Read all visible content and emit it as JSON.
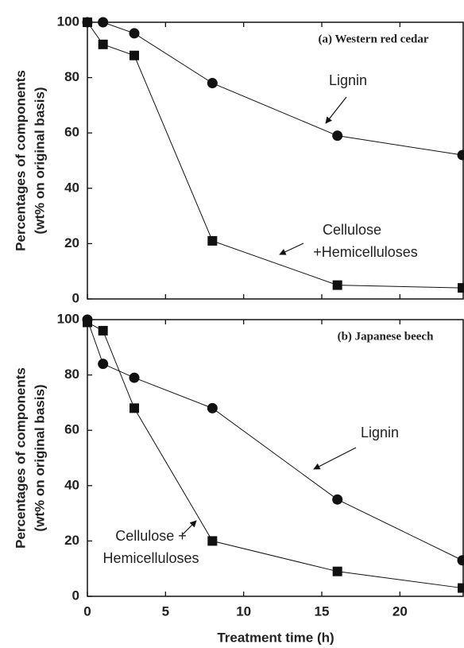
{
  "chart_data": [
    {
      "type": "line",
      "ylabel": [
        "Percentages of components",
        "(wt% on original basis)"
      ],
      "x": [
        0,
        1,
        3,
        8,
        16,
        24
      ],
      "xlim": [
        0,
        24
      ],
      "xticks": [
        0,
        5,
        10,
        15,
        20
      ],
      "ylim": [
        0,
        100
      ],
      "yticks": [
        0,
        20,
        40,
        60,
        80,
        100
      ],
      "title": "(a) Western red cedar",
      "series": [
        {
          "label_lines": [
            "Lignin"
          ],
          "marker": "circle",
          "color": "#111",
          "values": [
            100,
            100,
            96,
            78,
            59,
            52
          ]
        },
        {
          "label_lines": [
            "Cellulose",
            "+Hemicelluloses"
          ],
          "marker": "square",
          "color": "#111",
          "values": [
            100,
            92,
            88,
            21,
            5,
            4
          ]
        }
      ]
    },
    {
      "type": "line",
      "ylabel": [
        "Percentages of components",
        "(wt% on original basis)"
      ],
      "xlabel": "Treatment time (h)",
      "x": [
        0,
        1,
        3,
        8,
        16,
        24
      ],
      "xlim": [
        0,
        24
      ],
      "xticks": [
        0,
        5,
        10,
        15,
        20
      ],
      "ylim": [
        0,
        100
      ],
      "yticks": [
        0,
        20,
        40,
        60,
        80,
        100
      ],
      "title": "(b) Japanese beech",
      "series": [
        {
          "label_lines": [
            "Lignin"
          ],
          "marker": "circle",
          "color": "#111",
          "values": [
            100,
            84,
            79,
            68,
            35,
            13
          ]
        },
        {
          "label_lines": [
            "Cellulose +",
            "Hemicelluloses"
          ],
          "marker": "square",
          "color": "#111",
          "values": [
            99,
            96,
            68,
            20,
            9,
            3
          ]
        }
      ]
    }
  ]
}
